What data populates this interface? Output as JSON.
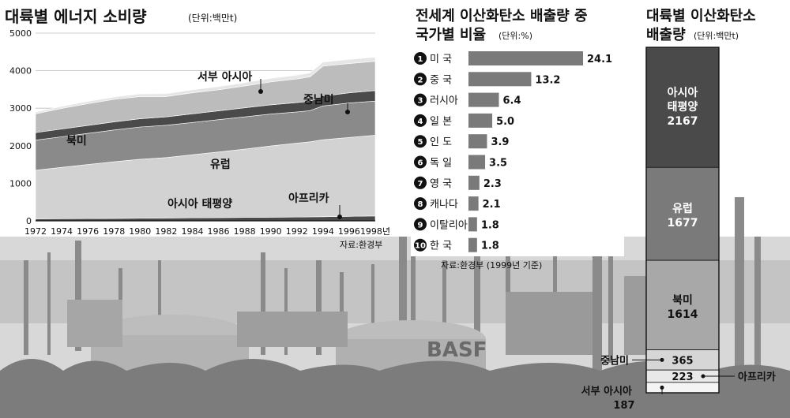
{
  "colors": {
    "background": "#ffffff",
    "dark_band": "#4a4a4a",
    "mid_band": "#8a8a8a",
    "light_band": "#c8c8c8",
    "bar": "#7a7a7a",
    "photo_sky": "#d6d6d6",
    "photo_ground": "#8f8f8f"
  },
  "energy": {
    "title": "대륙별 에너지 소비량",
    "unit": "(단위:백만t)",
    "source": "자료:환경부",
    "y_ticks": [
      "5000",
      "4000",
      "3000",
      "2000",
      "1000",
      "0"
    ],
    "x_ticks": [
      "1972",
      "1974",
      "1976",
      "1978",
      "1980",
      "1982",
      "1984",
      "1986",
      "1988",
      "1990",
      "1992",
      "1994",
      "1996",
      "1998년"
    ],
    "labels": {
      "west_asia": "서부 아시아",
      "latin_america": "중남미",
      "north_america": "북미",
      "europe": "유럽",
      "asia_pacific": "아시아 태평양",
      "africa": "아프리카"
    }
  },
  "share": {
    "title_line1": "전세계 이산화탄소 배출량 중",
    "title_line2": "국가별 비율",
    "unit": "(단위:%)",
    "source": "자료:환경부 (1999년 기준)",
    "items": [
      {
        "num": "1",
        "name": "미 국",
        "value": "24.1"
      },
      {
        "num": "2",
        "name": "중 국",
        "value": "13.2"
      },
      {
        "num": "3",
        "name": "러시아",
        "value": "6.4"
      },
      {
        "num": "4",
        "name": "일 본",
        "value": "5.0"
      },
      {
        "num": "5",
        "name": "인 도",
        "value": "3.9"
      },
      {
        "num": "6",
        "name": "독 일",
        "value": "3.5"
      },
      {
        "num": "7",
        "name": "영 국",
        "value": "2.3"
      },
      {
        "num": "8",
        "name": "캐나다",
        "value": "2.1"
      },
      {
        "num": "9",
        "name": "이탈리아",
        "value": "1.8"
      },
      {
        "num": "10",
        "name": "한 국",
        "value": "1.8"
      }
    ]
  },
  "emission": {
    "title_line1": "대륙별 이산화탄소",
    "title_line2": "배출량",
    "unit": "(단위:백만t)",
    "segments": [
      {
        "name": "아시아 태평양",
        "name_line1": "아시아",
        "name_line2": "태평양",
        "value": "2167"
      },
      {
        "name": "유럽",
        "value": "1677"
      },
      {
        "name": "북미",
        "value": "1614"
      },
      {
        "name": "중남미",
        "value": "365"
      },
      {
        "name": "아프리카",
        "value": "223"
      },
      {
        "name": "서부 아시아",
        "value": "187"
      }
    ]
  },
  "chart_data": [
    {
      "type": "area",
      "title": "대륙별 에너지 소비량",
      "unit": "백만t",
      "x": [
        1972,
        1974,
        1976,
        1978,
        1980,
        1982,
        1984,
        1986,
        1988,
        1990,
        1992,
        1993,
        1994,
        1996,
        1998
      ],
      "ylim": [
        0,
        5000
      ],
      "stacked": true,
      "series": [
        {
          "name": "아프리카",
          "values": [
            50,
            55,
            60,
            65,
            70,
            75,
            80,
            85,
            90,
            95,
            100,
            105,
            110,
            120,
            130
          ]
        },
        {
          "name": "아시아 태평양",
          "values": [
            1300,
            1370,
            1440,
            1510,
            1570,
            1610,
            1680,
            1750,
            1820,
            1900,
            1970,
            2000,
            2050,
            2100,
            2150
          ]
        },
        {
          "name": "유럽",
          "values": [
            800,
            815,
            830,
            845,
            860,
            860,
            860,
            860,
            860,
            850,
            830,
            830,
            900,
            920,
            910
          ]
        },
        {
          "name": "중남미",
          "values": [
            200,
            205,
            210,
            215,
            220,
            225,
            230,
            235,
            240,
            245,
            250,
            250,
            260,
            270,
            280
          ]
        },
        {
          "name": "북미",
          "values": [
            500,
            550,
            580,
            600,
            590,
            540,
            560,
            560,
            580,
            610,
            630,
            650,
            800,
            780,
            780
          ]
        },
        {
          "name": "서부 아시아",
          "values": [
            50,
            55,
            60,
            65,
            70,
            75,
            80,
            85,
            90,
            95,
            100,
            105,
            110,
            110,
            110
          ]
        }
      ],
      "grid": true
    },
    {
      "type": "bar",
      "title": "전세계 이산화탄소 배출량 중 국가별 비율",
      "unit": "%",
      "categories": [
        "미 국",
        "중 국",
        "러시아",
        "일 본",
        "인 도",
        "독 일",
        "영 국",
        "캐나다",
        "이탈리아",
        "한 국"
      ],
      "values": [
        24.1,
        13.2,
        6.4,
        5.0,
        3.9,
        3.5,
        2.3,
        2.1,
        1.8,
        1.8
      ],
      "orientation": "horizontal"
    },
    {
      "type": "bar",
      "title": "대륙별 이산화탄소 배출량",
      "unit": "백만t",
      "stacked": true,
      "categories": [
        "아시아 태평양",
        "유럽",
        "북미",
        "중남미",
        "아프리카",
        "서부 아시아"
      ],
      "values": [
        2167,
        1677,
        1614,
        365,
        223,
        187
      ]
    }
  ]
}
